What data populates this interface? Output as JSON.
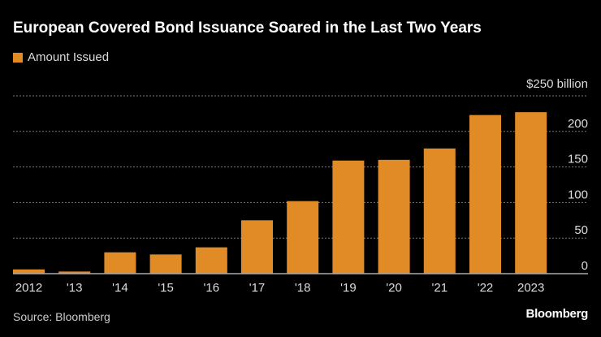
{
  "chart_data": {
    "type": "bar",
    "title": "European Covered Bond Issuance Soared in the Last Two Years",
    "categories": [
      "2012",
      "'13",
      "'14",
      "'15",
      "'16",
      "'17",
      "'18",
      "'19",
      "'20",
      "'21",
      "'22",
      "2023"
    ],
    "series": [
      {
        "name": "Amount Issued",
        "values": [
          6,
          3,
          30,
          27,
          37,
          75,
          102,
          159,
          160,
          176,
          223,
          227
        ],
        "color": "#e08b25"
      }
    ],
    "ylim": [
      0,
      250
    ],
    "yticks": [
      0,
      50,
      100,
      150,
      200,
      250
    ],
    "ytick_labels": [
      "0",
      "50",
      "100",
      "150",
      "200",
      "$250 billion"
    ],
    "grid": true,
    "y_axis_side": "right",
    "legend_placement": "top-left"
  },
  "source": "Source: Bloomberg",
  "logo": "Bloomberg"
}
